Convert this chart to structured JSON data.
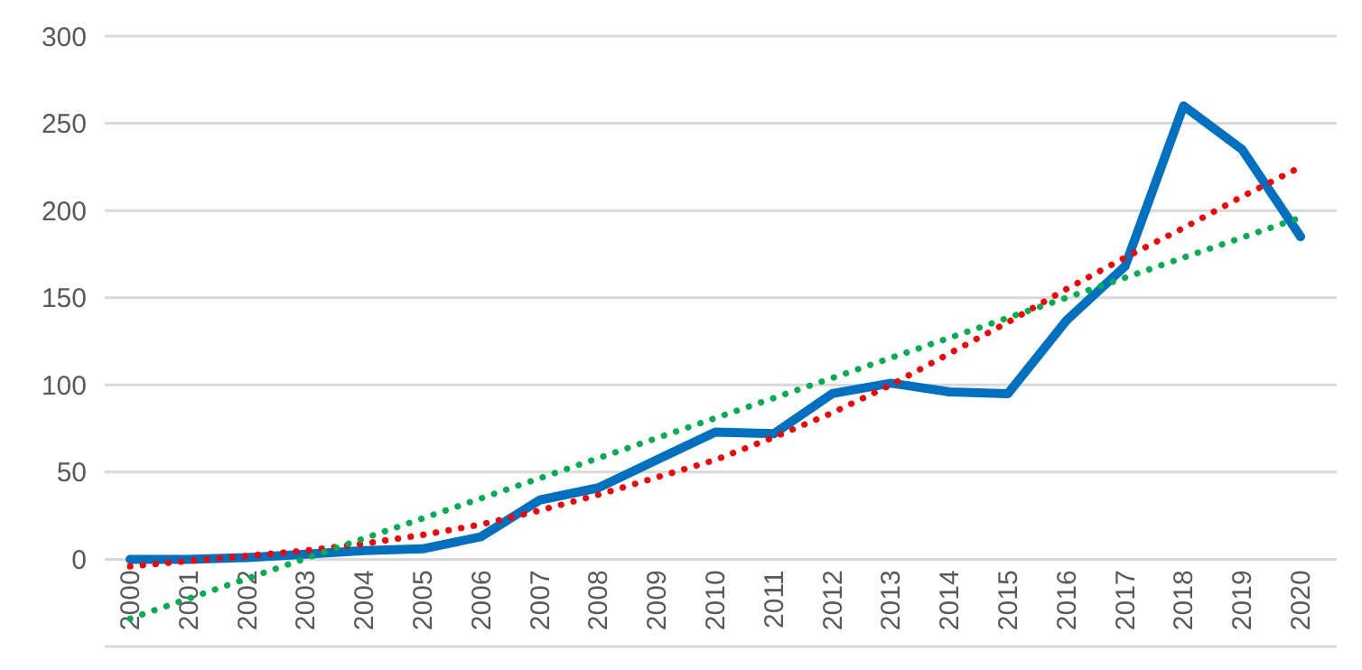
{
  "chart_data": {
    "type": "line",
    "categories": [
      "2000",
      "2001",
      "2002",
      "2003",
      "2004",
      "2005",
      "2006",
      "2007",
      "2008",
      "2009",
      "2010",
      "2011",
      "2012",
      "2013",
      "2014",
      "2015",
      "2016",
      "2017",
      "2018",
      "2019",
      "2020"
    ],
    "series": [
      {
        "color": "#0070c0",
        "line_style": "solid",
        "values": [
          0,
          0,
          1,
          3,
          5,
          6,
          13,
          34,
          41,
          57,
          73,
          72,
          95,
          101,
          96,
          95,
          137,
          168,
          260,
          235,
          185
        ]
      },
      {
        "color": "#ff0000",
        "line_style": "dotted",
        "values": [
          -4,
          -1,
          2,
          5,
          9,
          14,
          20,
          28,
          37,
          47,
          57,
          70,
          84,
          100,
          118,
          136,
          155,
          173,
          190,
          208,
          225
        ]
      },
      {
        "color": "#00b050",
        "line_style": "dotted",
        "values": [
          -34,
          -22.5,
          -11,
          0.5,
          12,
          23.5,
          35,
          46.5,
          58,
          69.5,
          81,
          92.5,
          104,
          115.5,
          127,
          138.5,
          150,
          161.5,
          173,
          184.5,
          196
        ]
      }
    ],
    "ylim": [
      -50,
      300
    ],
    "yticks": [
      {
        "value": -50,
        "label": null
      },
      0,
      50,
      100,
      150,
      200,
      250,
      300
    ],
    "grid": "y",
    "marker": "none"
  }
}
